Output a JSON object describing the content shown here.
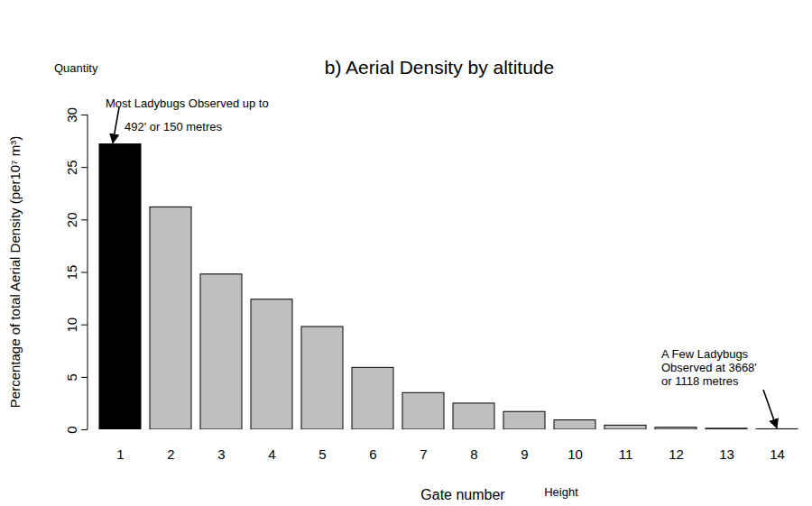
{
  "chart_data": {
    "type": "bar",
    "title": "b) Aerial Density by altitude",
    "xlabel": "Gate number",
    "ylabel": "Percentage of total Aerial Density (per10⁷ m³)",
    "xlabel_note": "Height",
    "ylabel_note": "Quantity",
    "categories": [
      1,
      2,
      3,
      4,
      5,
      6,
      7,
      8,
      9,
      10,
      11,
      12,
      13,
      14
    ],
    "values": [
      27.2,
      21.2,
      14.8,
      12.4,
      9.8,
      5.9,
      3.5,
      2.5,
      1.7,
      0.9,
      0.4,
      0.2,
      0.1,
      0.05
    ],
    "colors": [
      "#000000",
      "#bebebe",
      "#bebebe",
      "#bebebe",
      "#bebebe",
      "#bebebe",
      "#bebebe",
      "#bebebe",
      "#bebebe",
      "#bebebe",
      "#bebebe",
      "#bebebe",
      "#bebebe",
      "#bebebe"
    ],
    "ylim": [
      0,
      30
    ],
    "yticks": [
      0,
      5,
      10,
      15,
      20,
      25,
      30
    ],
    "grid": false,
    "annotations": [
      {
        "text": [
          "Most Ladybugs Observed up to",
          "492' or 150 metres"
        ],
        "x": 1
      },
      {
        "text": [
          "A Few Ladybugs",
          "Observed at 3668'",
          "or 1118 metres"
        ],
        "x": 14
      }
    ]
  }
}
